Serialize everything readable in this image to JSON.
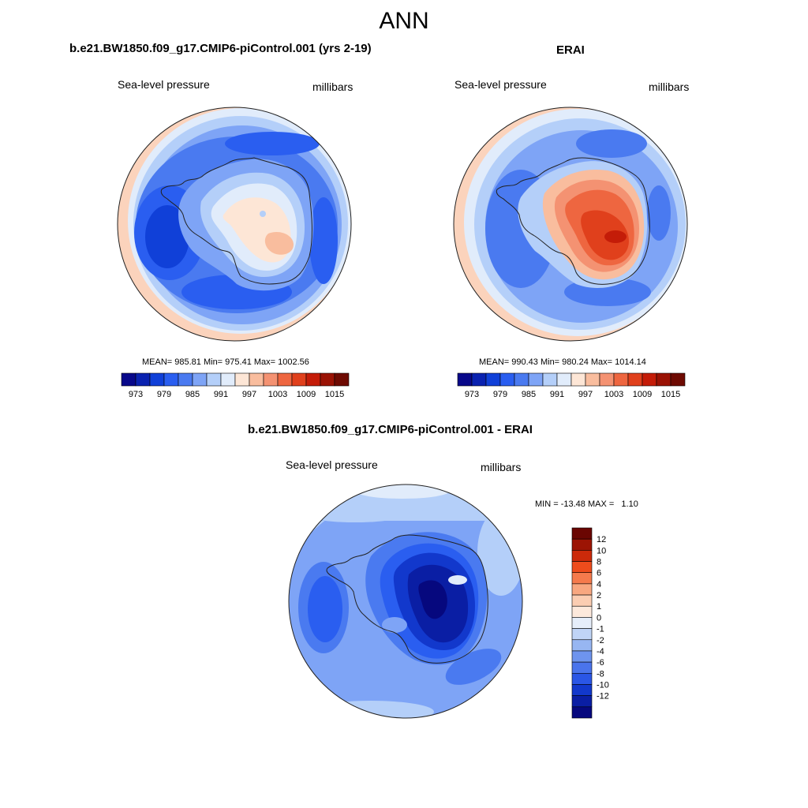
{
  "figure": {
    "title": "ANN"
  },
  "panels": {
    "model": {
      "title": "b.e21.BW1850.f09_g17.CMIP6-piControl.001 (yrs 2-19)",
      "left_label": "Sea-level pressure",
      "right_label": "millibars",
      "stats": "MEAN= 985.81  Min= 975.41  Max= 1002.56"
    },
    "obs": {
      "title": "ERAI",
      "left_label": "Sea-level pressure",
      "right_label": "millibars",
      "stats": "MEAN= 990.43  Min= 980.24  Max= 1014.14"
    },
    "diff": {
      "title": "b.e21.BW1850.f09_g17.CMIP6-piControl.001 - ERAI",
      "left_label": "Sea-level pressure",
      "right_label": "millibars",
      "stats": "MIN = -13.48 MAX =   1.10"
    }
  },
  "colorbars": {
    "slp": {
      "colors": [
        "#08088a",
        "#0a22b0",
        "#1040d8",
        "#2a5ef0",
        "#4a7af0",
        "#7ea4f6",
        "#b4cff9",
        "#e1ecfb",
        "#fde6d6",
        "#f9bd9e",
        "#f49272",
        "#ee6640",
        "#e0401c",
        "#c41c08",
        "#9a1204",
        "#6e0a02"
      ],
      "labels": [
        "973",
        "979",
        "985",
        "991",
        "997",
        "1003",
        "1009",
        "1015"
      ]
    },
    "diff": {
      "colors": [
        "#6a0602",
        "#9c1404",
        "#cc2a0a",
        "#ee4c1c",
        "#f57a4c",
        "#f8a780",
        "#fbcdb2",
        "#fde9dc",
        "#e6eefa",
        "#c0d4f6",
        "#97b6f2",
        "#6e94ee",
        "#4a74ec",
        "#2a56e6",
        "#1238cc",
        "#0a1ea4",
        "#06087e"
      ],
      "labels": [
        "12",
        "10",
        "8",
        "6",
        "4",
        "2",
        "1",
        "0",
        "-1",
        "-2",
        "-4",
        "-6",
        "-8",
        "-10",
        "-12"
      ]
    }
  },
  "chart_data": [
    {
      "type": "heatmap",
      "title": "b.e21.BW1850.f09_g17.CMIP6-piControl.001 (yrs 2-19)",
      "variable": "Sea-level pressure",
      "units": "millibars",
      "projection": "south polar stereographic",
      "mean": 985.81,
      "min": 975.41,
      "max": 1002.56,
      "contour_levels": [
        973,
        976,
        979,
        982,
        985,
        988,
        991,
        994,
        997,
        1000,
        1003,
        1006,
        1009,
        1012,
        1015
      ]
    },
    {
      "type": "heatmap",
      "title": "ERAI",
      "variable": "Sea-level pressure",
      "units": "millibars",
      "projection": "south polar stereographic",
      "mean": 990.43,
      "min": 980.24,
      "max": 1014.14,
      "contour_levels": [
        973,
        976,
        979,
        982,
        985,
        988,
        991,
        994,
        997,
        1000,
        1003,
        1006,
        1009,
        1012,
        1015
      ]
    },
    {
      "type": "heatmap",
      "title": "b.e21.BW1850.f09_g17.CMIP6-piControl.001 - ERAI",
      "variable": "Sea-level pressure",
      "units": "millibars",
      "projection": "south polar stereographic",
      "min": -13.48,
      "max": 1.1,
      "contour_levels": [
        -12,
        -10,
        -8,
        -6,
        -4,
        -2,
        -1,
        0,
        1,
        2,
        4,
        6,
        8,
        10,
        12
      ]
    }
  ]
}
